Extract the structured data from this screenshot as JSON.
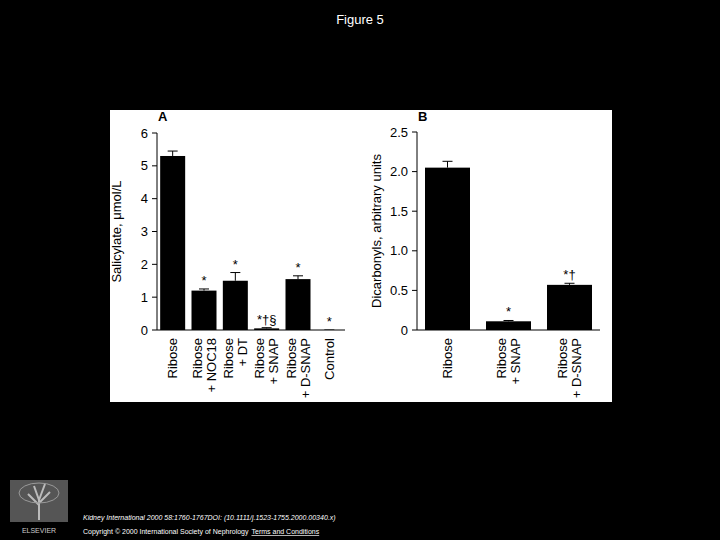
{
  "page": {
    "title": "Figure 5",
    "logo": "ELSEVIER",
    "citation": "Kidney International 2000 58:1760-1767DOI: (10.1111/j.1523-1755.2000.00340.x)",
    "copyright": "Copyright © 2000 International Society of Nephrology",
    "link": "Terms and Conditions"
  },
  "chart_data": [
    {
      "type": "bar",
      "title": "A",
      "y_label": "Salicylate, μmol/L",
      "color": "#000000",
      "categories": [
        "Ribose",
        "Ribose + NOC18",
        "Ribose + DT",
        "Ribose + SNAP",
        "Ribose + D-SNAP",
        "Control"
      ],
      "values": [
        5.3,
        1.2,
        1.5,
        0.05,
        1.55,
        0
      ],
      "errors": [
        0.15,
        0.05,
        0.25,
        0.02,
        0.1,
        0
      ],
      "annotations": [
        null,
        "*",
        "*",
        "*†§",
        "*",
        "*"
      ],
      "ylim": [
        0,
        6
      ],
      "yticks": [
        0,
        1,
        2,
        3,
        4,
        5,
        6
      ],
      "grid": false
    },
    {
      "type": "bar",
      "title": "B",
      "y_label": "Dicarbonyls, arbitrary units",
      "color": "#000000",
      "categories": [
        "Ribose",
        "Ribose + SNAP",
        "Ribose + D-SNAP"
      ],
      "values": [
        2.05,
        0.11,
        0.57
      ],
      "errors": [
        0.08,
        0.01,
        0.02
      ],
      "annotations": [
        null,
        "*",
        "*†"
      ],
      "ylim": [
        0,
        2.5
      ],
      "yticks": [
        0,
        0.5,
        {
          "value": 1,
          "label": "1.0"
        },
        1.5,
        {
          "value": 2,
          "label": "2.0"
        },
        2.5
      ],
      "grid": false
    }
  ]
}
